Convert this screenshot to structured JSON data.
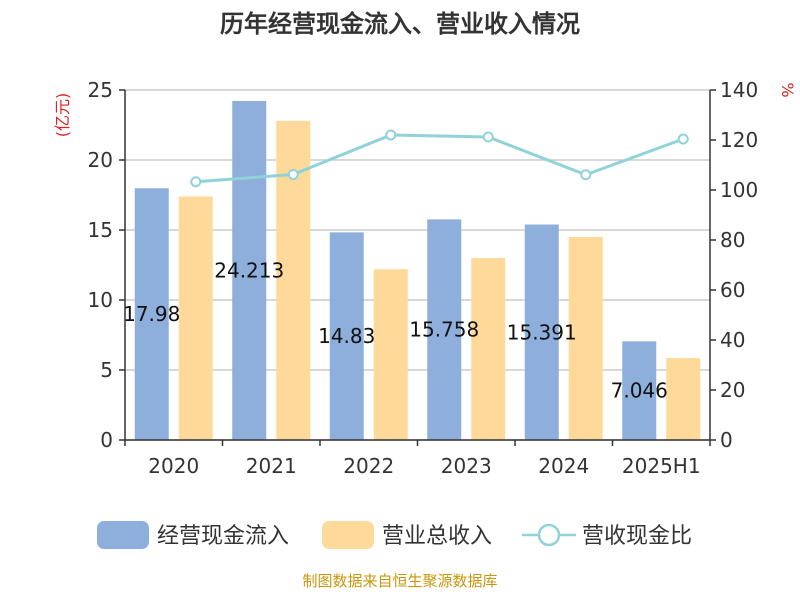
{
  "chart_data": {
    "type": "bar",
    "title": "历年经营现金流入、营业收入情况",
    "categories": [
      "2020",
      "2021",
      "2022",
      "2023",
      "2024",
      "2025H1"
    ],
    "y_left": {
      "unit": "(亿元)",
      "ylim": [
        0,
        25
      ],
      "ticks": [
        "0",
        "5",
        "10",
        "15",
        "20",
        "25"
      ]
    },
    "y_right": {
      "unit": "%",
      "ylim": [
        0,
        140
      ],
      "ticks": [
        "0",
        "20",
        "40",
        "60",
        "80",
        "100",
        "120",
        "140"
      ]
    },
    "series": [
      {
        "name": "经营现金流入",
        "type": "bar",
        "axis": "left",
        "color": "#8eaedb",
        "values": [
          17.98,
          24.213,
          14.83,
          15.758,
          15.391,
          7.046
        ],
        "labels": [
          "17.98",
          "24.213",
          "14.83",
          "15.758",
          "15.391",
          "7.046"
        ]
      },
      {
        "name": "营业总收入",
        "type": "bar",
        "axis": "left",
        "color": "#ffd99a",
        "values": [
          17.4,
          22.8,
          12.2,
          13.0,
          14.5,
          5.85
        ]
      },
      {
        "name": "营收现金比",
        "type": "line",
        "axis": "right",
        "color": "#8fd3d8",
        "values": [
          103.3,
          106.2,
          122.0,
          121.2,
          106.1,
          120.4
        ]
      }
    ],
    "grid": true,
    "legend_position": "bottom"
  },
  "source": "制图数据来自恒生聚源数据库"
}
